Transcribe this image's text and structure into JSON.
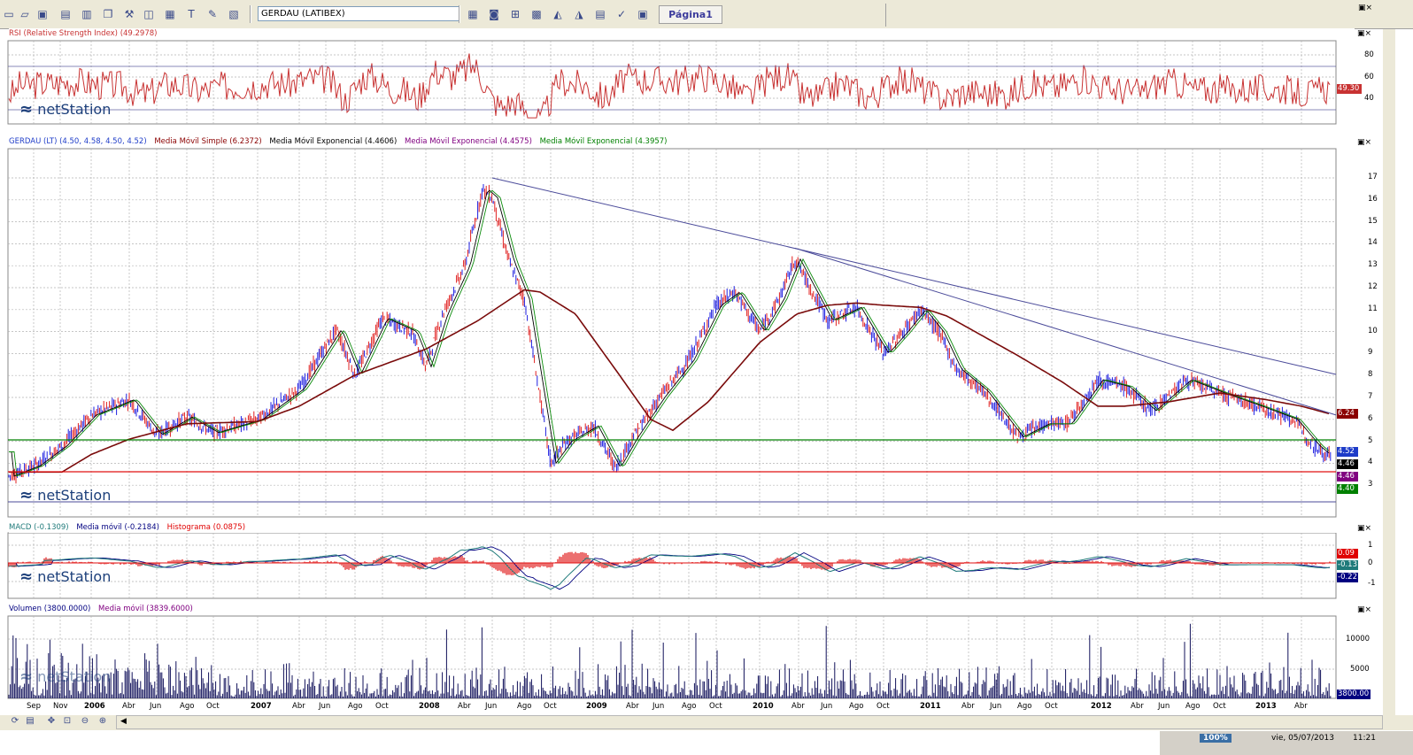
{
  "toolbar": {
    "icons": [
      "new-icon",
      "open-icon",
      "save-icon",
      "print-icon",
      "print-preview-icon",
      "copy-icon",
      "tools-icon",
      "layers-icon",
      "text-icon",
      "grid-icon",
      "properties-icon"
    ],
    "symbol": "GERDAU (LATIBEX)",
    "chart_icons": [
      "bar-chart-icon",
      "candle-icon",
      "indicator-icon",
      "line-chart-icon",
      "area-chart-icon",
      "news-icon",
      "alert-icon",
      "layout-icon"
    ],
    "page_tab": "Página1"
  },
  "rsi": {
    "header": "RSI (Relative Strength Index) (49.2978)",
    "axis": [
      "80",
      "60",
      "40"
    ],
    "last": "49.30",
    "color": "#c83232"
  },
  "price": {
    "header_main": "GERDAU (LT) (4.50, 4.58, 4.50, 4.52)",
    "sma": "Media Móvil Simple (6.2372)",
    "ema1": "Media Móvil Exponencial (4.4606)",
    "ema2": "Media Móvil Exponencial (4.4575)",
    "ema3": "Media Móvil Exponencial (4.3957)",
    "axis": [
      "17",
      "16",
      "15",
      "14",
      "13",
      "12",
      "11",
      "10",
      "9",
      "8",
      "7",
      "6",
      "5",
      "4",
      "3"
    ],
    "tags": [
      {
        "value": "6.24",
        "color": "#8b0000"
      },
      {
        "value": "4.52",
        "color": "#1e3cc8"
      },
      {
        "value": "4.46",
        "color": "#000000"
      },
      {
        "value": "4.46",
        "color": "#800080"
      },
      {
        "value": "4.40",
        "color": "#008000"
      }
    ]
  },
  "macd": {
    "header_macd": "MACD (-0.1309)",
    "header_ma": "Media móvil (-0.2184)",
    "header_hist": "Histograma (0.0875)",
    "axis": [
      "1",
      "0",
      "-1"
    ],
    "tags": [
      {
        "value": "0.09",
        "color": "#e00000"
      },
      {
        "value": "-0.13",
        "color": "#1f7a7a"
      },
      {
        "value": "-0.22",
        "color": "#000080"
      }
    ]
  },
  "volume": {
    "header_vol": "Volumen (3800.0000)",
    "header_ma": "Media móvil (3839.6000)",
    "axis": [
      "10000",
      "5000"
    ],
    "last": "3800.00"
  },
  "xaxis": [
    "Sep",
    "Nov",
    "2006",
    "Abr",
    "Jun",
    "Ago",
    "Oct",
    "2007",
    "Abr",
    "Jun",
    "Ago",
    "Oct",
    "2008",
    "Abr",
    "Jun",
    "Ago",
    "Oct",
    "2009",
    "Abr",
    "Jun",
    "Ago",
    "Oct",
    "2010",
    "Abr",
    "Jun",
    "Ago",
    "Oct",
    "2011",
    "Abr",
    "Jun",
    "Ago",
    "Oct",
    "2012",
    "Abr",
    "Jun",
    "Ago",
    "Oct",
    "2013",
    "Abr"
  ],
  "watermark": "netStation",
  "status": {
    "zoom": "100%",
    "date": "vie, 05/07/2013",
    "time": "11:21"
  }
}
